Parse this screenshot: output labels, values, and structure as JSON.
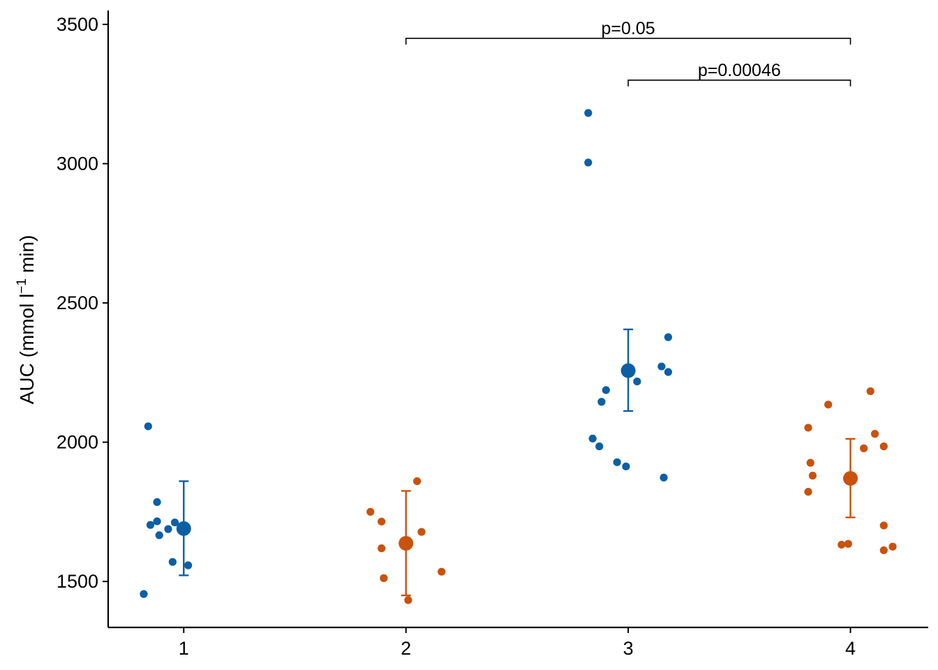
{
  "chart_data": {
    "type": "scatter",
    "ylabel": "AUC (mmol l",
    "ylabel_sup": "−1",
    "ylabel_suffix": " min)",
    "xlabel": "",
    "ylim": [
      1335,
      3550
    ],
    "xlim": [
      0.66,
      4.35
    ],
    "x_ticks": [
      1,
      2,
      3,
      4
    ],
    "x_tick_labels": [
      "1",
      "2",
      "3",
      "4"
    ],
    "y_ticks": [
      1500,
      2000,
      2500,
      3000,
      3500
    ],
    "y_tick_labels": [
      "1500",
      "2000",
      "2500",
      "3000",
      "3500"
    ],
    "grid": false,
    "colors": {
      "blue": "#0c5fa4",
      "orange": "#c9520c"
    },
    "groups": [
      {
        "x": 1,
        "color": "blue",
        "mean": 1690,
        "err_low": 1522,
        "err_high": 1860,
        "points": [
          [
            0.82,
            1455
          ],
          [
            0.84,
            2057
          ],
          [
            0.85,
            1703
          ],
          [
            0.88,
            1716
          ],
          [
            0.88,
            1785
          ],
          [
            0.89,
            1666
          ],
          [
            0.93,
            1688
          ],
          [
            0.95,
            1570
          ],
          [
            0.96,
            1712
          ],
          [
            1.02,
            1558
          ]
        ]
      },
      {
        "x": 2,
        "color": "orange",
        "mean": 1637,
        "err_low": 1450,
        "err_high": 1825,
        "points": [
          [
            1.84,
            1750
          ],
          [
            1.89,
            1715
          ],
          [
            1.89,
            1619
          ],
          [
            1.9,
            1512
          ],
          [
            2.01,
            1433
          ],
          [
            2.05,
            1860
          ],
          [
            2.07,
            1678
          ],
          [
            2.16,
            1535
          ]
        ]
      },
      {
        "x": 3,
        "color": "blue",
        "mean": 2257,
        "err_low": 2112,
        "err_high": 2405,
        "points": [
          [
            2.82,
            3182
          ],
          [
            2.82,
            3004
          ],
          [
            2.84,
            2013
          ],
          [
            2.87,
            1985
          ],
          [
            2.88,
            2145
          ],
          [
            2.9,
            2187
          ],
          [
            2.95,
            1928
          ],
          [
            2.99,
            1913
          ],
          [
            3.04,
            2218
          ],
          [
            3.15,
            2272
          ],
          [
            3.16,
            1873
          ],
          [
            3.18,
            2252
          ],
          [
            3.18,
            2377
          ]
        ]
      },
      {
        "x": 4,
        "color": "orange",
        "mean": 1870,
        "err_low": 1730,
        "err_high": 2012,
        "points": [
          [
            3.81,
            2052
          ],
          [
            3.81,
            1822
          ],
          [
            3.82,
            1926
          ],
          [
            3.83,
            1880
          ],
          [
            3.9,
            2135
          ],
          [
            3.96,
            1632
          ],
          [
            3.99,
            1635
          ],
          [
            4.06,
            1978
          ],
          [
            4.09,
            2183
          ],
          [
            4.11,
            2030
          ],
          [
            4.15,
            1612
          ],
          [
            4.15,
            1985
          ],
          [
            4.15,
            1701
          ],
          [
            4.19,
            1625
          ]
        ]
      }
    ],
    "comparisons": [
      {
        "x1": 2,
        "x2": 4,
        "y": 3450,
        "label": "p=0.05"
      },
      {
        "x1": 3,
        "x2": 4,
        "y": 3300,
        "label": "p=0.00046"
      }
    ]
  }
}
